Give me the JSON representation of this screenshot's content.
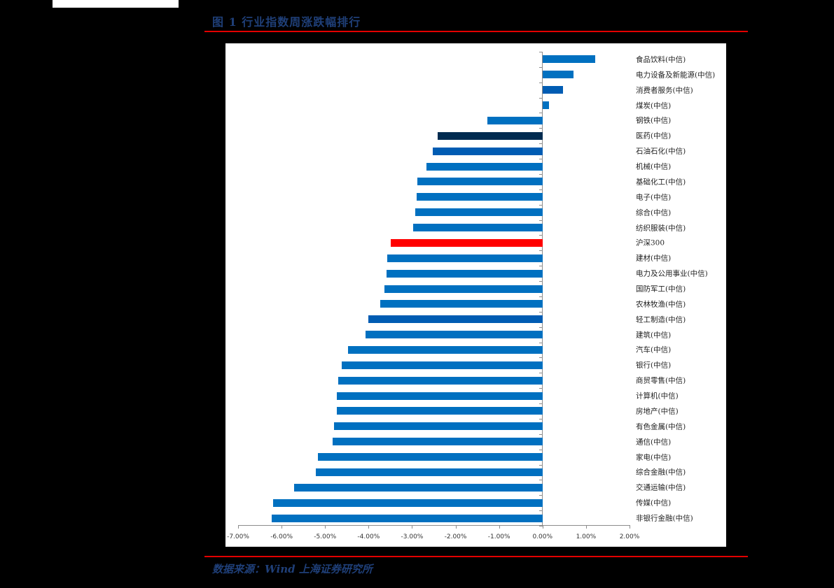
{
  "header": {
    "title": "图 1 行业指数周涨跌幅排行"
  },
  "footer": {
    "source": "数据来源：Wind  上海证券研究所"
  },
  "colors": {
    "default_bar": "#0070c0",
    "highlight_dark": "#002b50",
    "highlight_mid": "#005cb3",
    "benchmark": "#ff0000",
    "title_text": "#1f3f78",
    "rule": "#e30000"
  },
  "chart_data": {
    "type": "bar",
    "orientation": "horizontal",
    "title": "图 1 行业指数周涨跌幅排行",
    "xlabel": "",
    "ylabel": "",
    "xlim": [
      -7.0,
      2.0
    ],
    "x_ticks": [
      "-7.00%",
      "-6.00%",
      "-5.00%",
      "-4.00%",
      "-3.00%",
      "-2.00%",
      "-1.00%",
      "0.00%",
      "1.00%",
      "2.00%"
    ],
    "grid": false,
    "legend": null,
    "categories": [
      "食品饮料(中信)",
      "电力设备及新能源(中信)",
      "消费者服务(中信)",
      "煤炭(中信)",
      "钢铁(中信)",
      "医药(中信)",
      "石油石化(中信)",
      "机械(中信)",
      "基础化工(中信)",
      "电子(中信)",
      "综合(中信)",
      "纺织服装(中信)",
      "沪深300",
      "建材(中信)",
      "电力及公用事业(中信)",
      "国防军工(中信)",
      "农林牧渔(中信)",
      "轻工制造(中信)",
      "建筑(中信)",
      "汽车(中信)",
      "银行(中信)",
      "商贸零售(中信)",
      "计算机(中信)",
      "房地产(中信)",
      "有色金属(中信)",
      "通信(中信)",
      "家电(中信)",
      "综合金融(中信)",
      "交通运输(中信)",
      "传媒(中信)",
      "非银行金融(中信)"
    ],
    "values": [
      1.21,
      0.72,
      0.47,
      0.15,
      -1.27,
      -2.41,
      -2.52,
      -2.67,
      -2.88,
      -2.9,
      -2.93,
      -2.97,
      -3.49,
      -3.57,
      -3.59,
      -3.63,
      -3.73,
      -4.0,
      -4.07,
      -4.47,
      -4.61,
      -4.69,
      -4.73,
      -4.73,
      -4.79,
      -4.82,
      -5.16,
      -5.21,
      -5.72,
      -6.19,
      -6.22
    ],
    "unit": "%",
    "bar_colors": [
      "#0070c0",
      "#0070c0",
      "#005cb3",
      "#0070c0",
      "#0070c0",
      "#002b50",
      "#005cb3",
      "#0070c0",
      "#0070c0",
      "#0070c0",
      "#0070c0",
      "#0070c0",
      "#ff0000",
      "#0070c0",
      "#0070c0",
      "#0070c0",
      "#0070c0",
      "#005cb3",
      "#0070c0",
      "#0070c0",
      "#0070c0",
      "#0070c0",
      "#0070c0",
      "#0070c0",
      "#0070c0",
      "#0070c0",
      "#0070c0",
      "#0070c0",
      "#0070c0",
      "#0070c0",
      "#0070c0"
    ]
  }
}
